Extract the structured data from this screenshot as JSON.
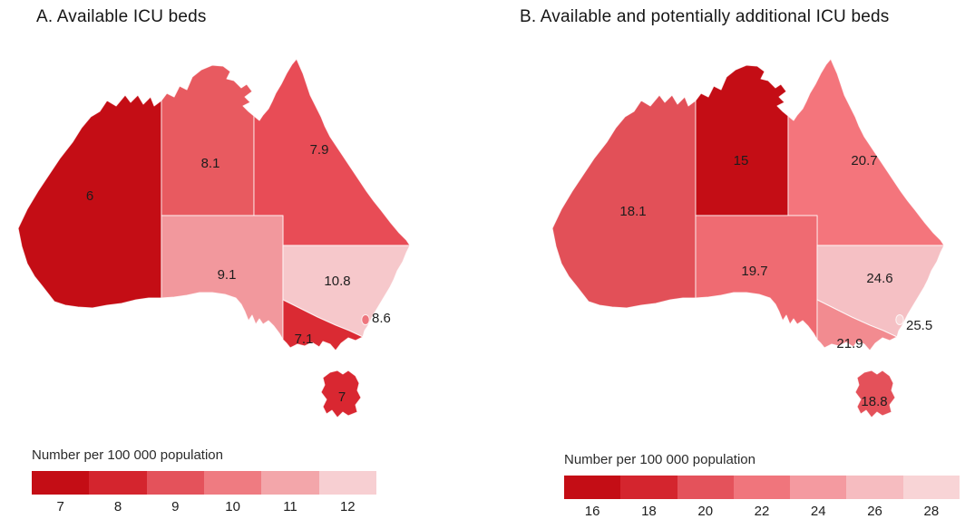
{
  "figure": {
    "unit_label": "Number per 100 000 population"
  },
  "panels": [
    {
      "id": "a",
      "title": "A. Available ICU beds",
      "legend": {
        "title": "Number per 100 000 population",
        "ticks": [
          "7",
          "8",
          "9",
          "10",
          "11",
          "12"
        ],
        "colors": [
          "#c40d15",
          "#d4252e",
          "#e4525b",
          "#ef7b81",
          "#f3a6aa",
          "#f7cfd2"
        ]
      },
      "states": [
        {
          "id": "wa",
          "name": "Western Australia",
          "value": "6",
          "fill": "#c40d15"
        },
        {
          "id": "nt",
          "name": "Northern Territory",
          "value": "8.1",
          "fill": "#e85a60"
        },
        {
          "id": "qld",
          "name": "Queensland",
          "value": "7.9",
          "fill": "#e84c56"
        },
        {
          "id": "sa",
          "name": "South Australia",
          "value": "9.1",
          "fill": "#f2989d"
        },
        {
          "id": "nsw",
          "name": "New South Wales",
          "value": "10.8",
          "fill": "#f6c8cb"
        },
        {
          "id": "vic",
          "name": "Victoria",
          "value": "7.1",
          "fill": "#da2a33"
        },
        {
          "id": "tas",
          "name": "Tasmania",
          "value": "7",
          "fill": "#d92731"
        },
        {
          "id": "act",
          "name": "Australian Capital Territory",
          "value": "8.6",
          "fill": "#ee757d"
        }
      ]
    },
    {
      "id": "b",
      "title": "B. Available and potentially additional ICU beds",
      "legend": {
        "title": "Number per 100 000 population",
        "ticks": [
          "16",
          "18",
          "20",
          "22",
          "24",
          "26",
          "28"
        ],
        "colors": [
          "#c40d15",
          "#d4252e",
          "#e4525b",
          "#f0757c",
          "#f49aa0",
          "#f6bcc0",
          "#f8d4d6"
        ]
      },
      "states": [
        {
          "id": "wa",
          "name": "Western Australia",
          "value": "18.1",
          "fill": "#e25058"
        },
        {
          "id": "nt",
          "name": "Northern Territory",
          "value": "15",
          "fill": "#c40d15"
        },
        {
          "id": "qld",
          "name": "Queensland",
          "value": "20.7",
          "fill": "#f4757c"
        },
        {
          "id": "sa",
          "name": "South Australia",
          "value": "19.7",
          "fill": "#ef6b72"
        },
        {
          "id": "nsw",
          "name": "New South Wales",
          "value": "24.6",
          "fill": "#f5c0c4"
        },
        {
          "id": "vic",
          "name": "Victoria",
          "value": "21.9",
          "fill": "#f28b90"
        },
        {
          "id": "tas",
          "name": "Tasmania",
          "value": "18.8",
          "fill": "#e4515a"
        },
        {
          "id": "act",
          "name": "Australian Capital Territory",
          "value": "25.5",
          "fill": "#f7d4d6"
        }
      ]
    }
  ],
  "chart_data": [
    {
      "type": "heatmap",
      "subtype": "choropleth-map",
      "title": "A. Available ICU beds",
      "region": "Australia, states and territories",
      "unit": "Number per 100 000 population",
      "categories": [
        "Western Australia",
        "Northern Territory",
        "Queensland",
        "South Australia",
        "New South Wales",
        "Victoria",
        "Tasmania",
        "Australian Capital Territory"
      ],
      "values": [
        6,
        8.1,
        7.9,
        9.1,
        10.8,
        7.1,
        7,
        8.6
      ],
      "color_scale": {
        "ticks": [
          7,
          8,
          9,
          10,
          11,
          12
        ],
        "dark_to_light": true,
        "dark_hex": "#c40d15",
        "light_hex": "#f7cfd2"
      },
      "legend_position": "bottom-left"
    },
    {
      "type": "heatmap",
      "subtype": "choropleth-map",
      "title": "B. Available and potentially additional ICU beds",
      "region": "Australia, states and territories",
      "unit": "Number per 100 000 population",
      "categories": [
        "Western Australia",
        "Northern Territory",
        "Queensland",
        "South Australia",
        "New South Wales",
        "Victoria",
        "Tasmania",
        "Australian Capital Territory"
      ],
      "values": [
        18.1,
        15,
        20.7,
        19.7,
        24.6,
        21.9,
        18.8,
        25.5
      ],
      "color_scale": {
        "ticks": [
          16,
          18,
          20,
          22,
          24,
          26,
          28
        ],
        "dark_to_light": true,
        "dark_hex": "#c40d15",
        "light_hex": "#f8d4d6"
      },
      "legend_position": "bottom-left"
    }
  ]
}
